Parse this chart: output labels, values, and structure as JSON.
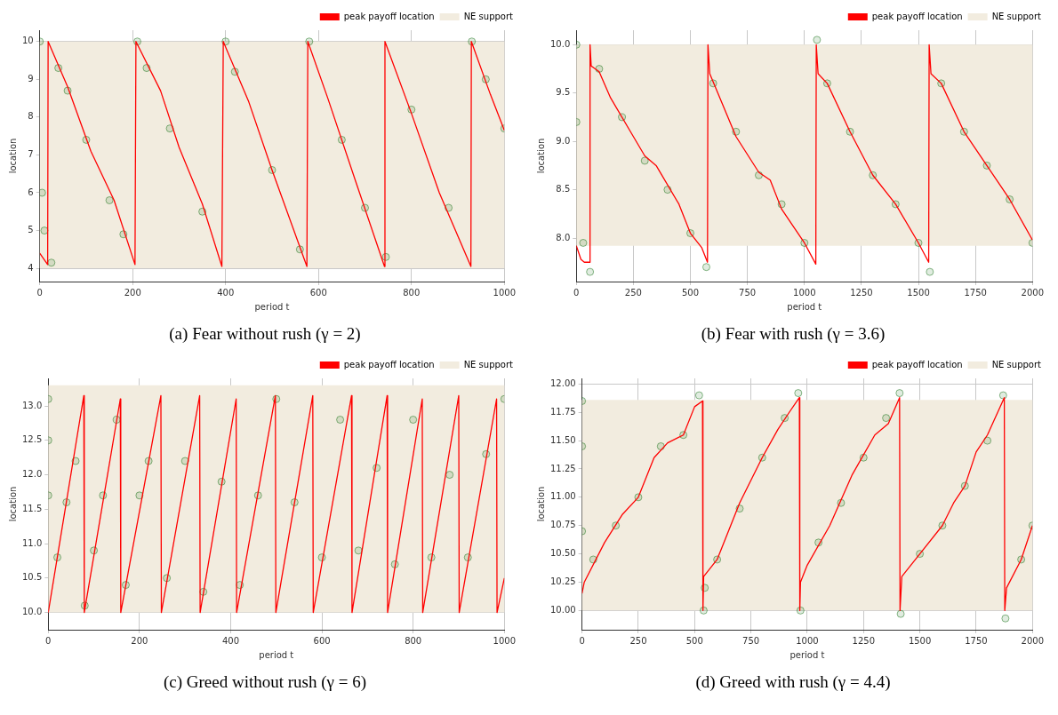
{
  "chart_data": [
    {
      "type": "line",
      "title": "(a) Fear without rush (γ = 2)",
      "xlabel": "period t",
      "ylabel": "location",
      "xlim": [
        0,
        1000
      ],
      "xticks": [
        0,
        200,
        400,
        600,
        800,
        1000
      ],
      "ylim": [
        3.65,
        10.3
      ],
      "yticks": [
        4,
        5,
        6,
        7,
        8,
        9,
        10
      ],
      "grid": true,
      "legend": "top right",
      "bands": [
        {
          "axis": "y",
          "from": 4,
          "to": 10,
          "label": "NE support",
          "color": "#f2ecdf"
        }
      ],
      "series": [
        {
          "type": "scatter",
          "marker": "circle",
          "color": "#006400",
          "x": [
            0,
            5,
            10,
            25,
            40,
            60,
            100,
            150,
            180,
            210,
            230,
            280,
            350,
            400,
            420,
            500,
            560,
            580,
            650,
            700,
            745,
            800,
            880,
            930,
            960,
            1000
          ],
          "values": [
            10,
            6,
            5,
            4.15,
            9.3,
            8.7,
            7.4,
            5.8,
            4.9,
            10,
            9.3,
            7.7,
            5.5,
            10,
            9.2,
            6.6,
            4.5,
            10,
            7.4,
            5.6,
            4.3,
            8.2,
            5.6,
            10,
            9,
            7.7
          ]
        },
        {
          "type": "line",
          "marker": "none",
          "name": "peak payoff location",
          "color": "#ff0000",
          "x": [
            0,
            17,
            18,
            60,
            110,
            160,
            205,
            207,
            260,
            300,
            350,
            392,
            395,
            450,
            500,
            575,
            577,
            620,
            680,
            742,
            743,
            800,
            860,
            928,
            929,
            970,
            1000
          ],
          "values": [
            4.4,
            4.1,
            10,
            8.8,
            7.1,
            5.8,
            4.1,
            10,
            8.7,
            7.2,
            5.7,
            4.05,
            10,
            8.4,
            6.6,
            4.05,
            10,
            8.5,
            6.3,
            4.05,
            10,
            8.1,
            6,
            4.05,
            10,
            8.6,
            7.65
          ]
        }
      ]
    },
    {
      "type": "line",
      "title": "(b) Fear with rush (γ = 3.6)",
      "xlabel": "period t",
      "ylabel": "location",
      "xlim": [
        0,
        2000
      ],
      "xticks": [
        0,
        250,
        500,
        750,
        1000,
        1250,
        1500,
        1750,
        2000
      ],
      "ylim": [
        7.55,
        10.15
      ],
      "yticks": [
        {
          "value": 8,
          "label": "8.0"
        },
        8.5,
        {
          "value": 9,
          "label": "9.0"
        },
        9.5,
        {
          "value": 10,
          "label": "10.0"
        }
      ],
      "grid": true,
      "legend": "top right",
      "bands": [
        {
          "axis": "y",
          "from": 7.92,
          "to": 10,
          "label": "NE support",
          "color": "#f2ecdf"
        }
      ],
      "series": [
        {
          "type": "scatter",
          "marker": "circle",
          "color": "#006400",
          "x": [
            0,
            0,
            30,
            60,
            100,
            200,
            300,
            400,
            500,
            570,
            600,
            700,
            800,
            900,
            1000,
            1055,
            1100,
            1200,
            1300,
            1400,
            1500,
            1550,
            1600,
            1700,
            1800,
            1900,
            2000
          ],
          "values": [
            10,
            9.2,
            7.95,
            7.65,
            9.75,
            9.25,
            8.8,
            8.5,
            8.05,
            7.7,
            9.6,
            9.1,
            8.65,
            8.35,
            7.95,
            10.05,
            9.6,
            9.1,
            8.65,
            8.35,
            7.95,
            7.65,
            9.6,
            9.1,
            8.75,
            8.4,
            7.95
          ]
        },
        {
          "type": "line",
          "marker": "none",
          "name": "peak payoff location",
          "color": "#ff0000",
          "x": [
            0,
            20,
            35,
            58,
            60,
            65,
            100,
            150,
            250,
            300,
            350,
            450,
            500,
            550,
            575,
            577,
            585,
            700,
            800,
            850,
            900,
            1000,
            1050,
            1052,
            1060,
            1100,
            1200,
            1300,
            1400,
            1500,
            1545,
            1547,
            1555,
            1600,
            1700,
            1800,
            1900,
            2000
          ],
          "values": [
            7.92,
            7.78,
            7.75,
            7.75,
            10,
            9.78,
            9.72,
            9.45,
            9.05,
            8.85,
            8.75,
            8.35,
            8.05,
            7.9,
            7.75,
            10,
            9.7,
            9.05,
            8.68,
            8.6,
            8.3,
            7.95,
            7.73,
            10,
            9.7,
            9.6,
            9.1,
            8.65,
            8.35,
            7.95,
            7.75,
            10,
            9.7,
            9.6,
            9.1,
            8.75,
            8.4,
            7.98
          ]
        }
      ]
    },
    {
      "type": "line",
      "title": "(c) Greed without rush (γ = 6)",
      "xlabel": "period t",
      "ylabel": "location",
      "xlim": [
        0,
        1000
      ],
      "xticks": [
        0,
        200,
        400,
        600,
        800,
        1000
      ],
      "ylim": [
        9.75,
        13.4
      ],
      "yticks": [
        {
          "value": 10,
          "label": "10.0"
        },
        10.5,
        {
          "value": 11,
          "label": "11.0"
        },
        11.5,
        {
          "value": 12,
          "label": "12.0"
        },
        12.5,
        {
          "value": 13,
          "label": "13.0"
        }
      ],
      "grid": true,
      "legend": "top right",
      "bands": [
        {
          "axis": "y",
          "from": 10,
          "to": 13.3,
          "label": "NE support",
          "color": "#f2ecdf"
        }
      ],
      "series": [
        {
          "type": "scatter",
          "marker": "circle",
          "color": "#006400",
          "x": [
            0,
            0,
            0,
            20,
            40,
            60,
            80,
            100,
            120,
            150,
            170,
            200,
            220,
            260,
            300,
            340,
            380,
            420,
            460,
            500,
            540,
            600,
            640,
            680,
            720,
            760,
            800,
            840,
            880,
            920,
            960,
            1000
          ],
          "values": [
            13.1,
            12.5,
            11.7,
            10.8,
            11.6,
            12.2,
            10.1,
            10.9,
            11.7,
            12.8,
            10.4,
            11.7,
            12.2,
            10.5,
            12.2,
            10.3,
            11.9,
            10.4,
            11.7,
            13.1,
            11.6,
            10.8,
            12.8,
            10.9,
            12.1,
            10.7,
            12.8,
            10.8,
            12,
            10.8,
            12.3,
            13.1
          ]
        },
        {
          "type": "line",
          "marker": "none",
          "name": "peak payoff location",
          "color": "#ff0000",
          "x": [
            0,
            78,
            79,
            158,
            159,
            247,
            248,
            332,
            333,
            412,
            413,
            498,
            499,
            580,
            581,
            665,
            666,
            743,
            744,
            820,
            821,
            900,
            901,
            983,
            984,
            1000
          ],
          "values": [
            10,
            13.15,
            10,
            13.1,
            10,
            13.15,
            10,
            13.15,
            10,
            13.1,
            10,
            13.15,
            10,
            13.15,
            10,
            13.15,
            10,
            13.15,
            10,
            13.1,
            10,
            13.15,
            10,
            13.1,
            10,
            10.5
          ]
        }
      ]
    },
    {
      "type": "line",
      "title": "(d) Greed with rush (γ = 4.4)",
      "xlabel": "period t",
      "ylabel": "location",
      "xlim": [
        0,
        2000
      ],
      "xticks": [
        0,
        250,
        500,
        750,
        1000,
        1250,
        1500,
        1750,
        2000
      ],
      "ylim": [
        9.83,
        12.05
      ],
      "yticks": [
        {
          "value": 10,
          "label": "10.00"
        },
        10.25,
        {
          "value": 10.5,
          "label": "10.50"
        },
        10.75,
        {
          "value": 11,
          "label": "11.00"
        },
        11.25,
        {
          "value": 11.5,
          "label": "11.50"
        },
        11.75,
        {
          "value": 12,
          "label": "12.00"
        }
      ],
      "grid": true,
      "legend": "top right",
      "bands": [
        {
          "axis": "y",
          "from": 10,
          "to": 11.86,
          "label": "NE support",
          "color": "#f2ecdf"
        }
      ],
      "series": [
        {
          "type": "scatter",
          "marker": "circle",
          "color": "#006400",
          "x": [
            0,
            0,
            0,
            50,
            150,
            250,
            350,
            450,
            520,
            540,
            545,
            600,
            700,
            800,
            900,
            960,
            970,
            1050,
            1150,
            1250,
            1350,
            1410,
            1415,
            1500,
            1600,
            1700,
            1800,
            1870,
            1880,
            1950,
            2000
          ],
          "values": [
            11.85,
            11.45,
            10.7,
            10.45,
            10.75,
            11,
            11.45,
            11.55,
            11.9,
            10,
            10.2,
            10.45,
            10.9,
            11.35,
            11.7,
            11.92,
            10,
            10.6,
            10.95,
            11.35,
            11.7,
            11.92,
            9.97,
            10.5,
            10.75,
            11.1,
            11.5,
            11.9,
            9.93,
            10.45,
            10.75
          ]
        },
        {
          "type": "line",
          "marker": "none",
          "name": "peak payoff location",
          "color": "#ff0000",
          "x": [
            0,
            10,
            100,
            180,
            250,
            320,
            380,
            450,
            500,
            535,
            537,
            540,
            600,
            700,
            800,
            870,
            920,
            965,
            967,
            970,
            1000,
            1100,
            1200,
            1300,
            1360,
            1410,
            1412,
            1420,
            1500,
            1600,
            1650,
            1700,
            1750,
            1800,
            1875,
            1877,
            1885,
            1950,
            2000
          ],
          "values": [
            10.15,
            10.25,
            10.6,
            10.85,
            11,
            11.35,
            11.48,
            11.55,
            11.8,
            11.85,
            10,
            10.3,
            10.45,
            10.95,
            11.35,
            11.6,
            11.75,
            11.88,
            10,
            10.25,
            10.4,
            10.75,
            11.2,
            11.55,
            11.65,
            11.88,
            10,
            10.3,
            10.5,
            10.75,
            10.95,
            11.1,
            11.4,
            11.55,
            11.88,
            10,
            10.2,
            10.45,
            10.75
          ]
        }
      ]
    }
  ]
}
